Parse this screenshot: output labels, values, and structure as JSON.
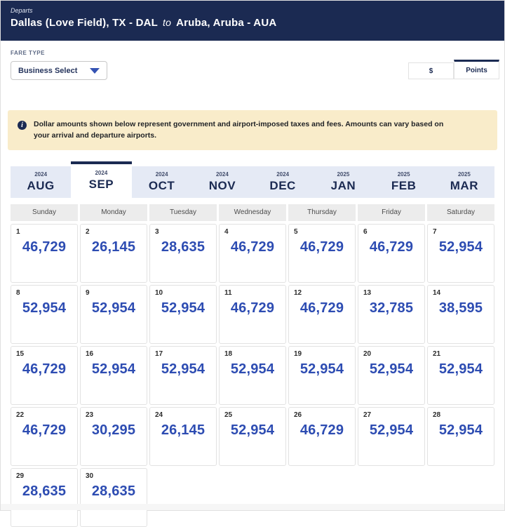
{
  "header": {
    "departs_label": "Departs",
    "origin": "Dallas (Love Field), TX - DAL",
    "to_label": "to",
    "destination": "Aruba, Aruba - AUA"
  },
  "fare_controls": {
    "fare_type_label": "FARE TYPE",
    "fare_type_value": "Business Select",
    "dollar_label": "$",
    "points_label": "Points",
    "selected_currency": "Points"
  },
  "info_banner": {
    "text": "Dollar amounts shown below represent government and airport-imposed taxes and fees. Amounts can vary based on your arrival and departure airports."
  },
  "month_tabs": [
    {
      "year": "2024",
      "month": "AUG",
      "selected": false
    },
    {
      "year": "2024",
      "month": "SEP",
      "selected": true
    },
    {
      "year": "2024",
      "month": "OCT",
      "selected": false
    },
    {
      "year": "2024",
      "month": "NOV",
      "selected": false
    },
    {
      "year": "2024",
      "month": "DEC",
      "selected": false
    },
    {
      "year": "2025",
      "month": "JAN",
      "selected": false
    },
    {
      "year": "2025",
      "month": "FEB",
      "selected": false
    },
    {
      "year": "2025",
      "month": "MAR",
      "selected": false
    }
  ],
  "calendar": {
    "weekday_headers": [
      "Sunday",
      "Monday",
      "Tuesday",
      "Wednesday",
      "Thursday",
      "Friday",
      "Saturday"
    ],
    "days": [
      {
        "day": "1",
        "fare": "46,729"
      },
      {
        "day": "2",
        "fare": "26,145"
      },
      {
        "day": "3",
        "fare": "28,635"
      },
      {
        "day": "4",
        "fare": "46,729"
      },
      {
        "day": "5",
        "fare": "46,729"
      },
      {
        "day": "6",
        "fare": "46,729"
      },
      {
        "day": "7",
        "fare": "52,954"
      },
      {
        "day": "8",
        "fare": "52,954"
      },
      {
        "day": "9",
        "fare": "52,954"
      },
      {
        "day": "10",
        "fare": "52,954"
      },
      {
        "day": "11",
        "fare": "46,729"
      },
      {
        "day": "12",
        "fare": "46,729"
      },
      {
        "day": "13",
        "fare": "32,785"
      },
      {
        "day": "14",
        "fare": "38,595"
      },
      {
        "day": "15",
        "fare": "46,729"
      },
      {
        "day": "16",
        "fare": "52,954"
      },
      {
        "day": "17",
        "fare": "52,954"
      },
      {
        "day": "18",
        "fare": "52,954"
      },
      {
        "day": "19",
        "fare": "52,954"
      },
      {
        "day": "20",
        "fare": "52,954"
      },
      {
        "day": "21",
        "fare": "52,954"
      },
      {
        "day": "22",
        "fare": "46,729"
      },
      {
        "day": "23",
        "fare": "30,295"
      },
      {
        "day": "24",
        "fare": "26,145"
      },
      {
        "day": "25",
        "fare": "52,954"
      },
      {
        "day": "26",
        "fare": "46,729"
      },
      {
        "day": "27",
        "fare": "52,954"
      },
      {
        "day": "28",
        "fare": "52,954"
      },
      {
        "day": "29",
        "fare": "28,635"
      },
      {
        "day": "30",
        "fare": "28,635"
      }
    ]
  },
  "colors": {
    "header_navy": "#1b2a52",
    "fare_blue": "#2d4cb2",
    "banner_cream": "#f9ecca",
    "tab_inactive_bg": "#e5eaf5",
    "weekday_bg": "#ececec"
  }
}
